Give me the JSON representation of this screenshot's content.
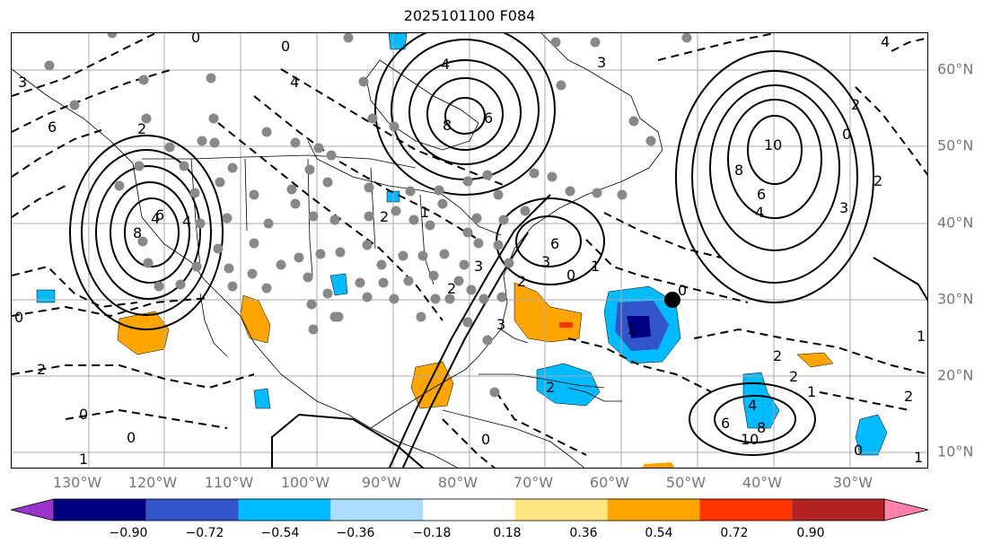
{
  "title": "2025101100 F084",
  "lon_labels": [
    "130°W",
    "120°W",
    "110°W",
    "100°W",
    "90°W",
    "80°W",
    "70°W",
    "60°W",
    "50°W",
    "40°W",
    "30°W"
  ],
  "lat_labels": [
    "60°N",
    "50°N",
    "40°N",
    "30°N",
    "20°N",
    "10°N"
  ],
  "colorbar": {
    "levels": [
      "−0.90",
      "−0.72",
      "−0.54",
      "−0.36",
      "−0.18",
      "0.18",
      "0.36",
      "0.54",
      "0.72",
      "0.90"
    ],
    "colors": [
      "#9933cc",
      "#000080",
      "#3355cc",
      "#00bbff",
      "#aaddff",
      "#ffffff",
      "#ffe680",
      "#ffa500",
      "#ff3300",
      "#b22222",
      "#ff80aa"
    ]
  },
  "contour_labels": [
    "4",
    "8",
    "6",
    "0",
    "2",
    "4",
    "6",
    "8",
    "6",
    "3",
    "1",
    "0",
    "10",
    "8",
    "6",
    "4",
    "3",
    "2",
    "0",
    "2",
    "3",
    "4",
    "0",
    "2",
    "1",
    "2",
    "2",
    "1",
    "2",
    "4",
    "6",
    "8",
    "10",
    "3",
    "1",
    "0",
    "0",
    "0",
    "2",
    "1",
    "2",
    "3",
    "1",
    "0",
    "1",
    "2",
    "3",
    "4",
    "0",
    "6",
    "4",
    "2",
    "0"
  ],
  "colors": {
    "contour": "#000000",
    "station": "#888888",
    "marker": "#000000",
    "grid": "#aaaaaa",
    "axis_label": "#777777"
  }
}
